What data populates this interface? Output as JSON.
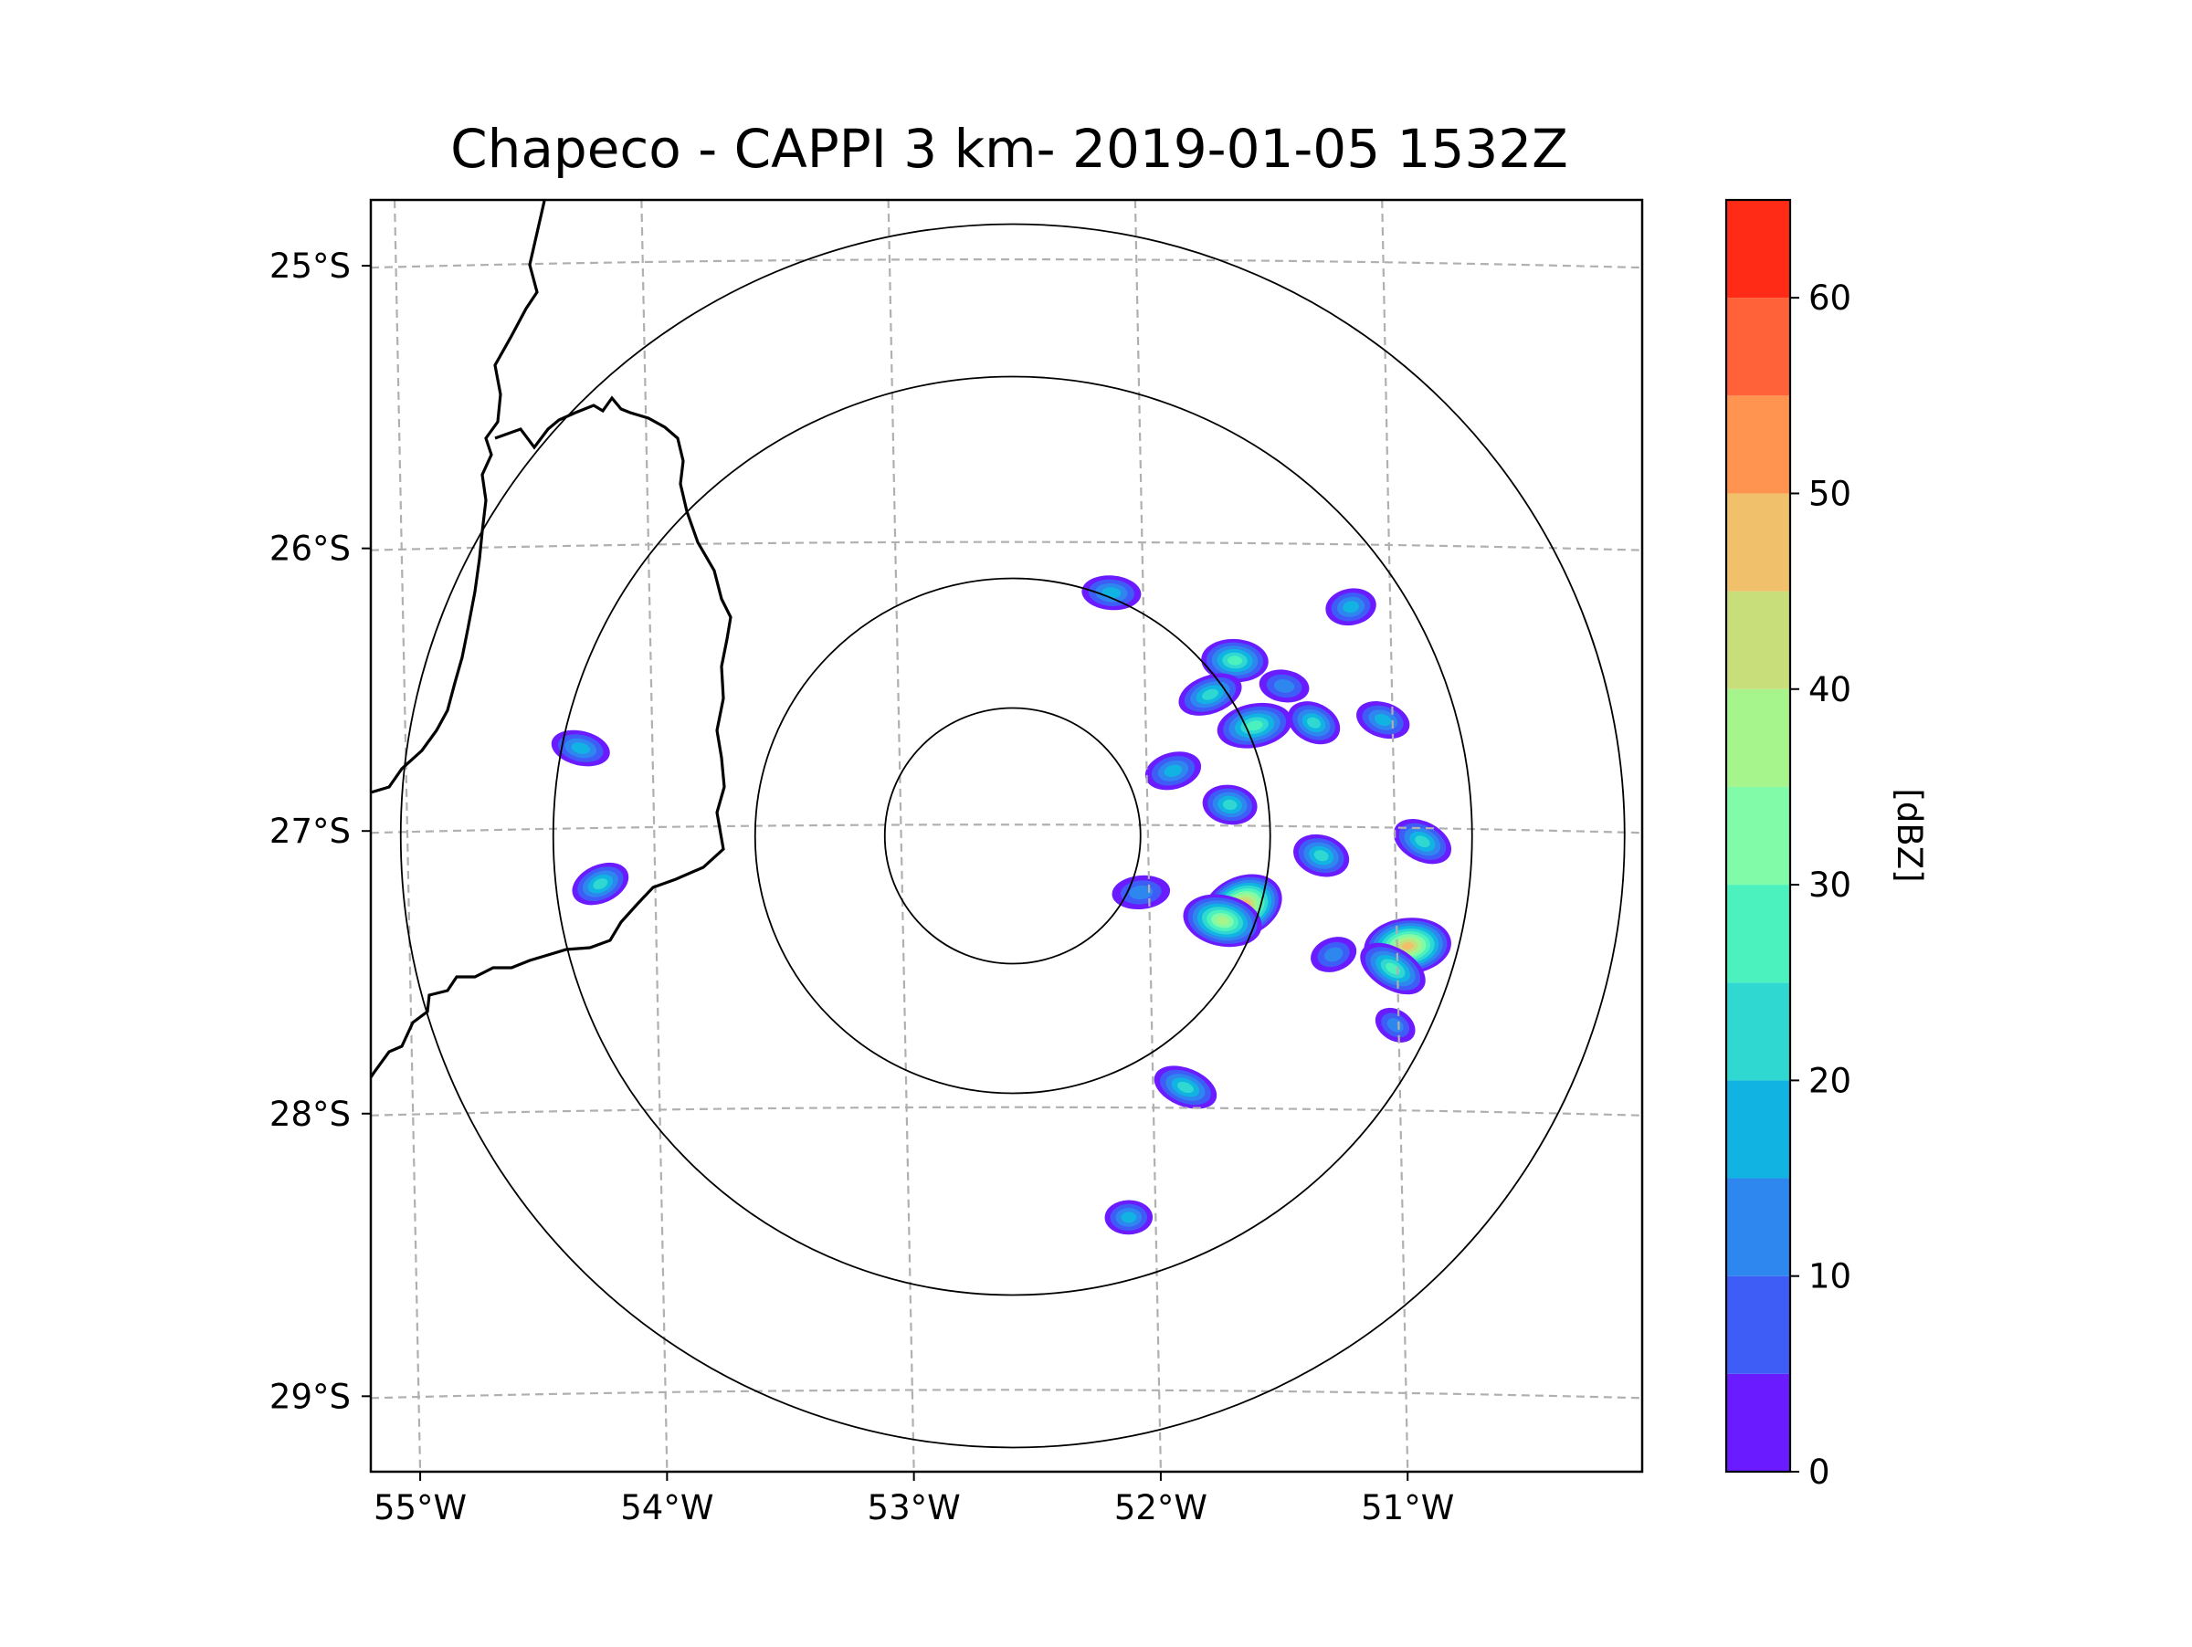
{
  "chart_data": {
    "type": "heatmap",
    "title": "Chapeco - CAPPI 3 km- 2019-01-05 1532Z",
    "projection": "radar azimuthal map",
    "xlabel": "",
    "ylabel": "",
    "lon_ticks": [
      {
        "value": -55,
        "label": "55°W"
      },
      {
        "value": -54,
        "label": "54°W"
      },
      {
        "value": -53,
        "label": "53°W"
      },
      {
        "value": -52,
        "label": "52°W"
      },
      {
        "value": -51,
        "label": "51°W"
      }
    ],
    "lat_ticks": [
      {
        "value": -25,
        "label": "25°S"
      },
      {
        "value": -26,
        "label": "26°S"
      },
      {
        "value": -27,
        "label": "27°S"
      },
      {
        "value": -28,
        "label": "28°S"
      },
      {
        "value": -29,
        "label": "29°S"
      }
    ],
    "xlim": [
      -55.2,
      -50.05
    ],
    "ylim": [
      -29.28,
      -24.78
    ],
    "radar_center": {
      "lon": -52.6,
      "lat": -27.03
    },
    "range_rings": 4,
    "colorbar": {
      "label": "[dBZ]",
      "range": [
        0,
        65
      ],
      "ticks": [
        {
          "value": 0,
          "label": "0"
        },
        {
          "value": 10,
          "label": "10"
        },
        {
          "value": 20,
          "label": "20"
        },
        {
          "value": 30,
          "label": "30"
        },
        {
          "value": 40,
          "label": "40"
        },
        {
          "value": 50,
          "label": "50"
        },
        {
          "value": 60,
          "label": "60"
        }
      ],
      "bins": [
        0,
        5,
        10,
        15,
        20,
        25,
        30,
        35,
        40,
        45,
        50,
        55,
        60,
        65
      ],
      "colors": [
        "#6b1bff",
        "#3e5cf6",
        "#2e86ef",
        "#11b3e2",
        "#2fd9d2",
        "#4bf2be",
        "#81fba7",
        "#a5f58c",
        "#c7de7b",
        "#f1c06b",
        "#ff9450",
        "#ff6139",
        "#ff2b16"
      ]
    },
    "cells": [
      {
        "lon": -51.67,
        "lat": -27.28,
        "dbz": 50
      },
      {
        "lon": -51.75,
        "lat": -27.33,
        "dbz": 38
      },
      {
        "lon": -51.62,
        "lat": -26.64,
        "dbz": 28
      },
      {
        "lon": -51.38,
        "lat": -26.63,
        "dbz": 22
      },
      {
        "lon": -51.7,
        "lat": -26.41,
        "dbz": 27
      },
      {
        "lon": -51.8,
        "lat": -26.53,
        "dbz": 20
      },
      {
        "lon": -51.35,
        "lat": -27.1,
        "dbz": 24
      },
      {
        "lon": -51.0,
        "lat": -27.42,
        "dbz": 45
      },
      {
        "lon": -51.06,
        "lat": -27.5,
        "dbz": 25
      },
      {
        "lon": -51.72,
        "lat": -26.92,
        "dbz": 22
      },
      {
        "lon": -51.95,
        "lat": -26.8,
        "dbz": 18
      },
      {
        "lon": -51.9,
        "lat": -27.92,
        "dbz": 20
      },
      {
        "lon": -52.13,
        "lat": -28.38,
        "dbz": 15
      },
      {
        "lon": -54.27,
        "lat": -27.2,
        "dbz": 20
      },
      {
        "lon": -54.35,
        "lat": -26.72,
        "dbz": 15
      },
      {
        "lon": -51.23,
        "lat": -26.22,
        "dbz": 18
      },
      {
        "lon": -50.94,
        "lat": -27.05,
        "dbz": 22
      },
      {
        "lon": -52.2,
        "lat": -26.17,
        "dbz": 15
      },
      {
        "lon": -51.3,
        "lat": -27.45,
        "dbz": 14
      },
      {
        "lon": -51.1,
        "lat": -26.62,
        "dbz": 16
      },
      {
        "lon": -52.08,
        "lat": -27.23,
        "dbz": 14
      },
      {
        "lon": -51.05,
        "lat": -27.7,
        "dbz": 10
      },
      {
        "lon": -51.5,
        "lat": -26.5,
        "dbz": 12
      }
    ]
  }
}
